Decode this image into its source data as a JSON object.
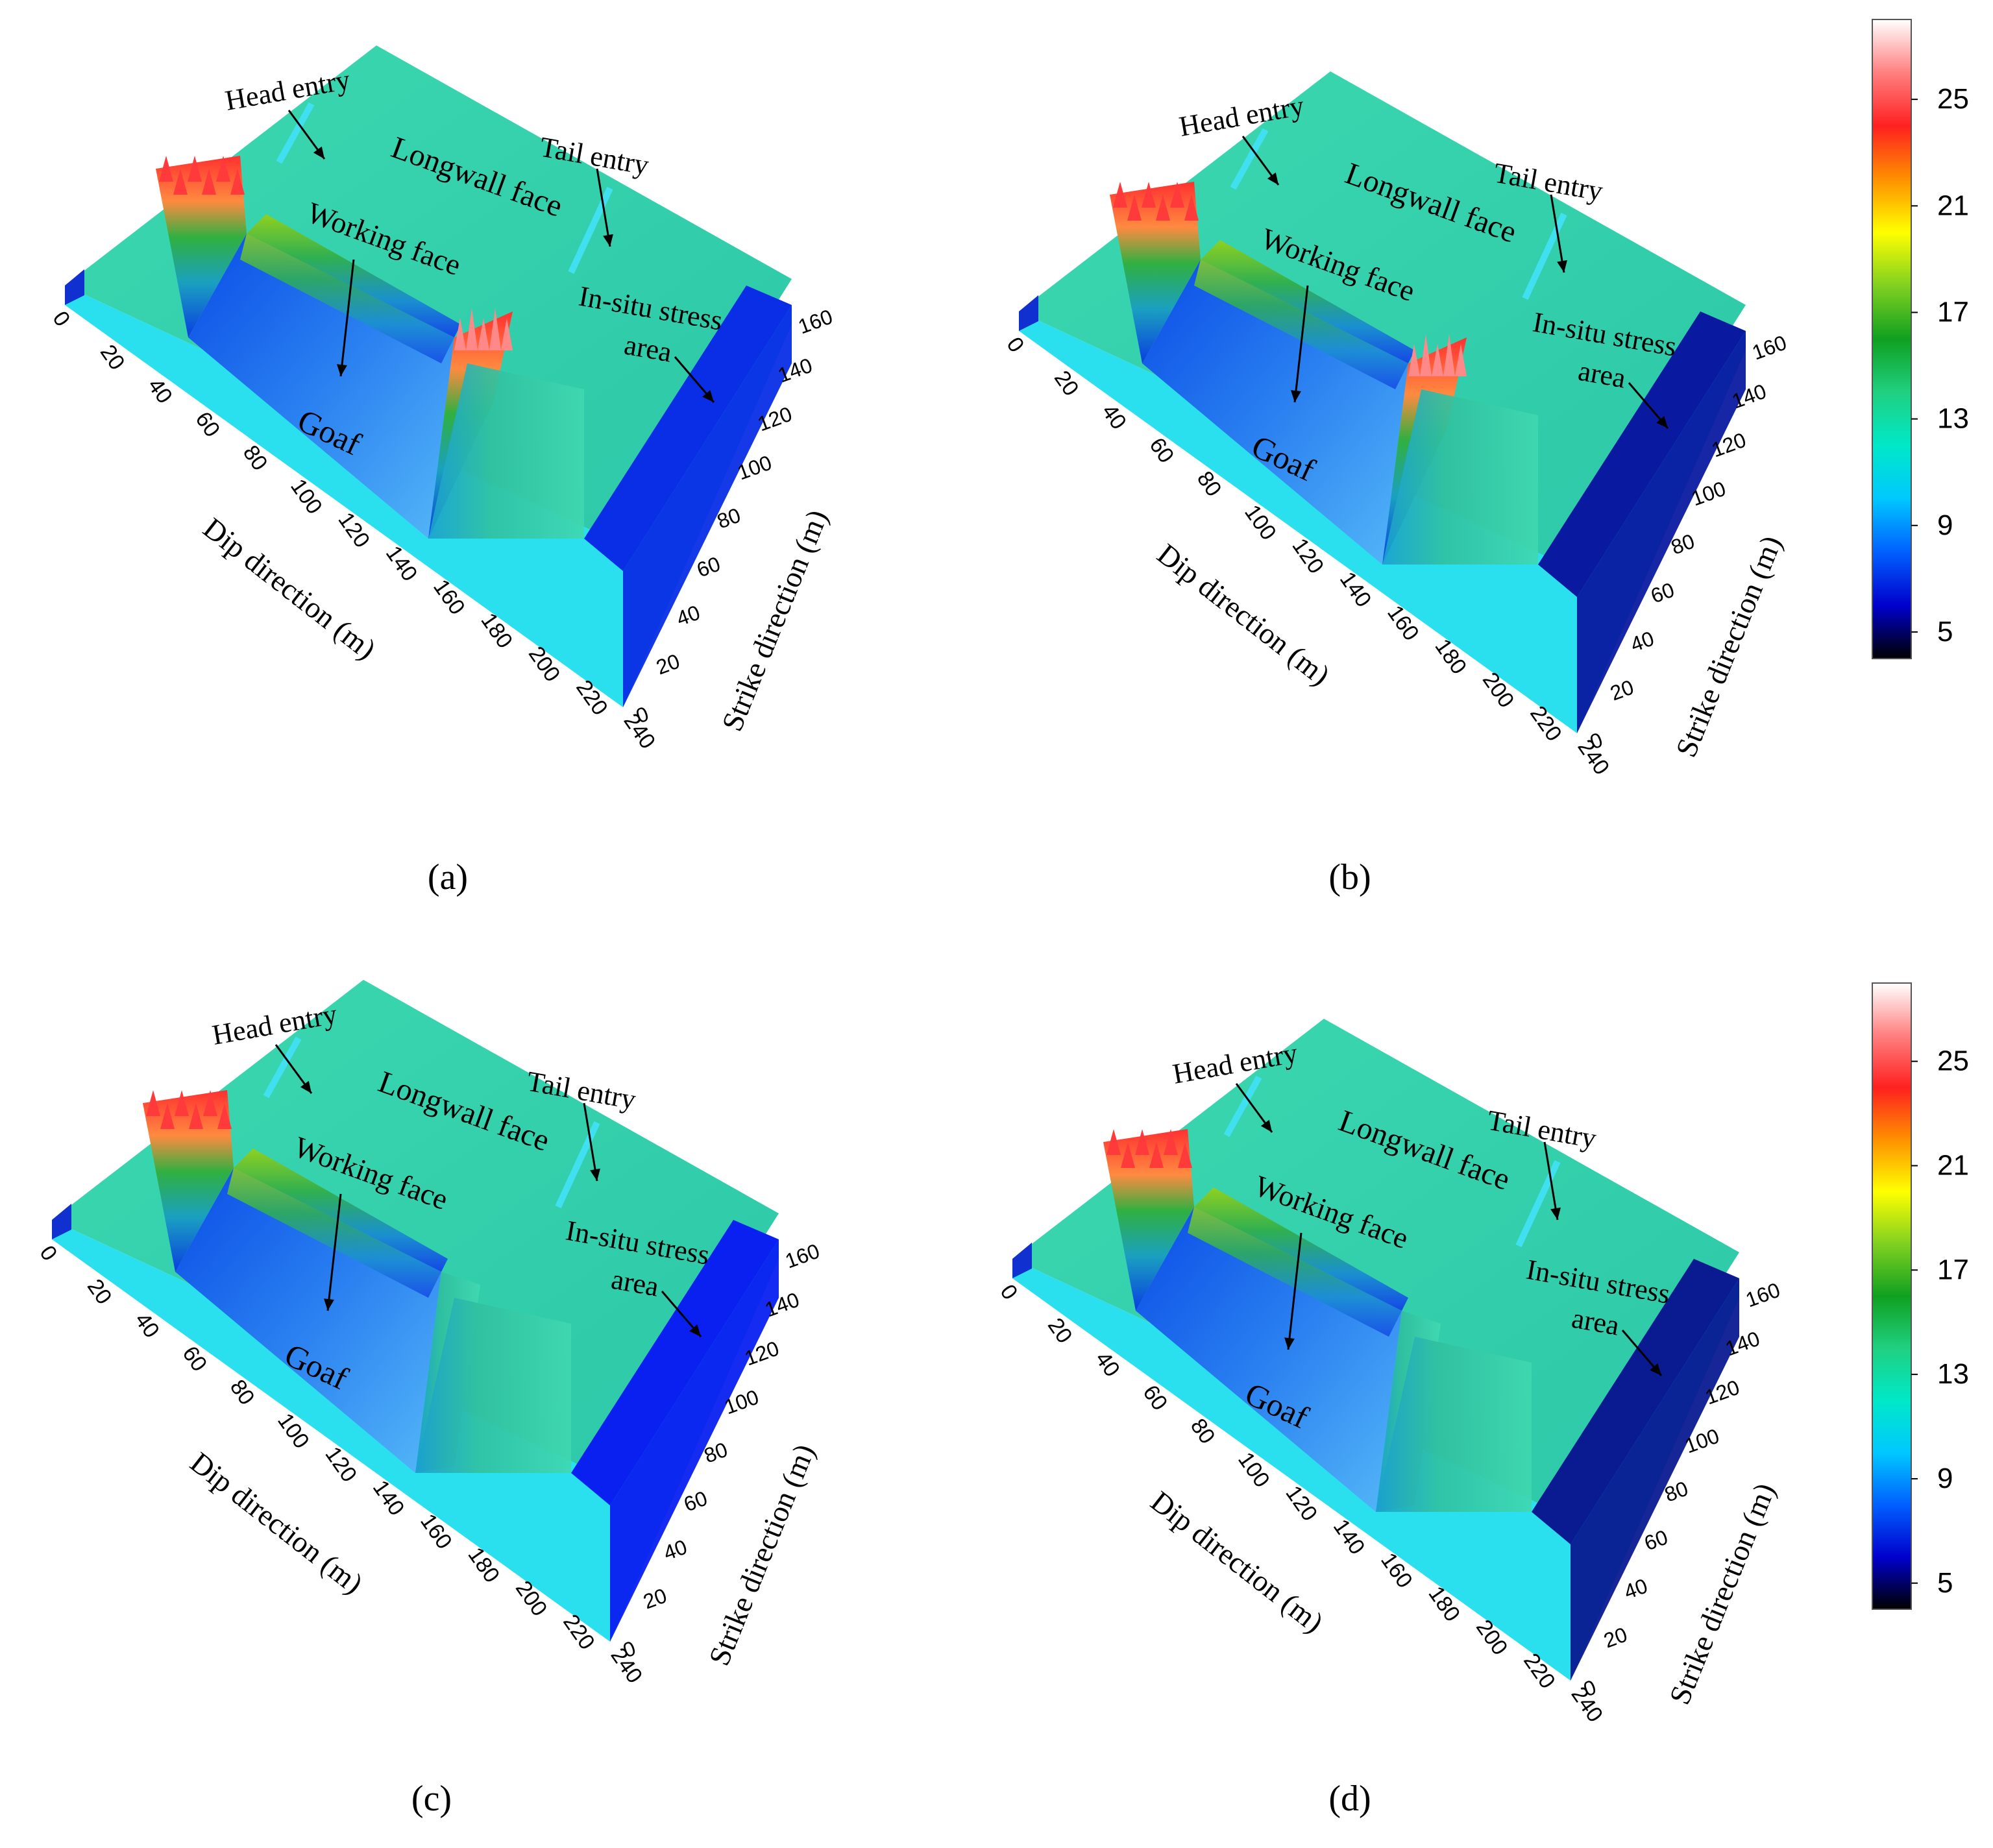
{
  "panels": [
    {
      "letter": "a",
      "caption": "(a)",
      "labels": {
        "head_entry": "Head entry",
        "longwall_face": "Longwall face",
        "tail_entry": "Tail entry",
        "working_face": "Working face",
        "in_situ_line1": "In-situ stress",
        "in_situ_line2": "area",
        "goaf": "Goaf"
      },
      "xlabel": "Dip direction (m)",
      "ylabel": "Strike direction (m)",
      "x_ticks": [
        "0",
        "20",
        "40",
        "60",
        "80",
        "100",
        "120",
        "140",
        "160",
        "180",
        "200",
        "220",
        "240"
      ],
      "y_ticks": [
        "0",
        "20",
        "40",
        "60",
        "80",
        "100",
        "120",
        "140",
        "160"
      ]
    },
    {
      "letter": "b",
      "caption": "(b)",
      "labels": {
        "head_entry": "Head entry",
        "longwall_face": "Longwall face",
        "tail_entry": "Tail entry",
        "working_face": "Working face",
        "in_situ_line1": "In-situ stress",
        "in_situ_line2": "area",
        "goaf": "Goaf"
      },
      "xlabel": "Dip direction (m)",
      "ylabel": "Strike direction (m)",
      "x_ticks": [
        "0",
        "20",
        "40",
        "60",
        "80",
        "100",
        "120",
        "140",
        "160",
        "180",
        "200",
        "220",
        "240"
      ],
      "y_ticks": [
        "0",
        "20",
        "40",
        "60",
        "80",
        "100",
        "120",
        "140",
        "160"
      ]
    },
    {
      "letter": "c",
      "caption": "(c)",
      "labels": {
        "head_entry": "Head entry",
        "longwall_face": "Longwall face",
        "tail_entry": "Tail entry",
        "working_face": "Working face",
        "in_situ_line1": "In-situ stress",
        "in_situ_line2": "area",
        "goaf": "Goaf"
      },
      "xlabel": "Dip direction (m)",
      "ylabel": "Strike direction (m)",
      "x_ticks": [
        "0",
        "20",
        "40",
        "60",
        "80",
        "100",
        "120",
        "140",
        "160",
        "180",
        "200",
        "220",
        "240"
      ],
      "y_ticks": [
        "0",
        "20",
        "40",
        "60",
        "80",
        "100",
        "120",
        "140",
        "160"
      ]
    },
    {
      "letter": "d",
      "caption": "(d)",
      "labels": {
        "head_entry": "Head entry",
        "longwall_face": "Longwall face",
        "tail_entry": "Tail entry",
        "working_face": "Working face",
        "in_situ_line1": "In-situ stress",
        "in_situ_line2": "area",
        "goaf": "Goaf"
      },
      "xlabel": "Dip direction (m)",
      "ylabel": "Strike direction (m)",
      "x_ticks": [
        "0",
        "20",
        "40",
        "60",
        "80",
        "100",
        "120",
        "140",
        "160",
        "180",
        "200",
        "220",
        "240"
      ],
      "y_ticks": [
        "0",
        "20",
        "40",
        "60",
        "80",
        "100",
        "120",
        "140",
        "160"
      ]
    }
  ],
  "colorbar": {
    "ticks": [
      "5",
      "9",
      "13",
      "17",
      "21",
      "25"
    ],
    "stops": [
      "#000000",
      "#0000cc",
      "#0060ff",
      "#00c8ff",
      "#00e8c8",
      "#20d080",
      "#10a020",
      "#80d020",
      "#ffff00",
      "#ff9000",
      "#ff2020",
      "#ff8080",
      "#ffffff"
    ]
  },
  "chart_data": [
    {
      "type": "surface",
      "panel": "a",
      "xlabel": "Dip direction (m)",
      "ylabel": "Strike direction (m)",
      "xlim": [
        0,
        240
      ],
      "ylim": [
        0,
        160
      ],
      "zlim": [
        5,
        27
      ],
      "regions": {
        "in_situ_stress": 10,
        "goaf_min": 7,
        "working_face": 16,
        "head_side_peak": 27,
        "tail_side_peak": 26
      }
    },
    {
      "type": "surface",
      "panel": "b",
      "xlabel": "Dip direction (m)",
      "ylabel": "Strike direction (m)",
      "xlim": [
        0,
        240
      ],
      "ylim": [
        0,
        160
      ],
      "zlim": [
        5,
        27
      ],
      "regions": {
        "in_situ_stress": 10,
        "goaf_min": 8,
        "working_face": 15,
        "head_side_peak": 26,
        "tail_side_peak": 25
      }
    },
    {
      "type": "surface",
      "panel": "c",
      "xlabel": "Dip direction (m)",
      "ylabel": "Strike direction (m)",
      "xlim": [
        0,
        240
      ],
      "ylim": [
        0,
        160
      ],
      "zlim": [
        5,
        27
      ],
      "regions": {
        "in_situ_stress": 10,
        "goaf_min": 7,
        "working_face": 16,
        "head_side_peak": 26,
        "tail_side_peak": 14
      }
    },
    {
      "type": "surface",
      "panel": "d",
      "xlabel": "Dip direction (m)",
      "ylabel": "Strike direction (m)",
      "xlim": [
        0,
        240
      ],
      "ylim": [
        0,
        160
      ],
      "zlim": [
        5,
        27
      ],
      "regions": {
        "in_situ_stress": 10,
        "goaf_min": 8,
        "working_face": 15,
        "head_side_peak": 25,
        "tail_side_peak": 13
      }
    }
  ]
}
